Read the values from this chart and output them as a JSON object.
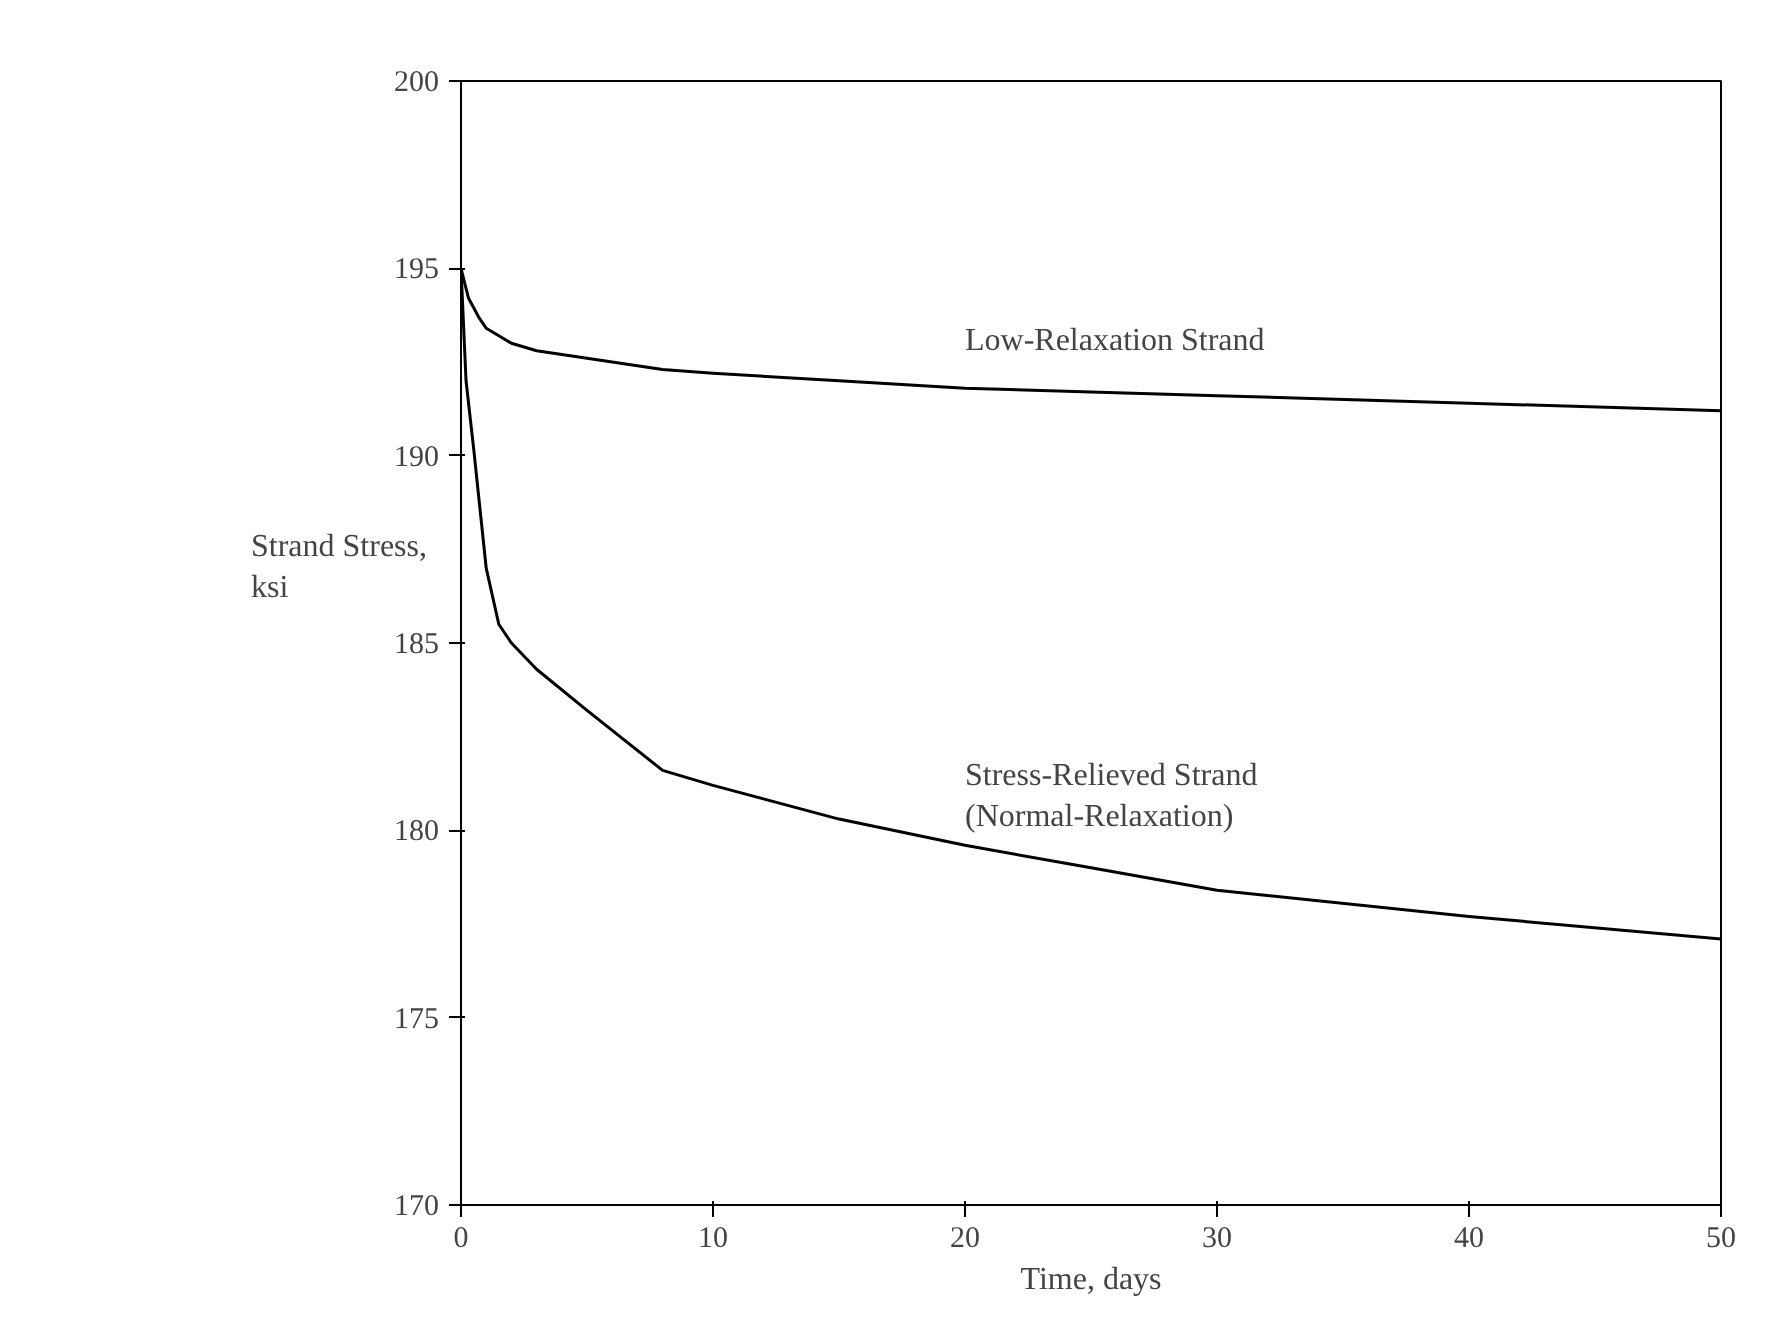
{
  "chart_data": {
    "type": "line",
    "xlabel": "Time, days",
    "ylabel": "Strand Stress,\nksi",
    "xlim": [
      0,
      50
    ],
    "ylim": [
      170,
      200
    ],
    "xticks": [
      0,
      10,
      20,
      30,
      40,
      50
    ],
    "yticks": [
      170,
      175,
      180,
      185,
      190,
      195,
      200
    ],
    "grid": false,
    "marker": "none",
    "line_style": "solid",
    "series": [
      {
        "name": "Low-Relaxation Strand",
        "color": "#000000",
        "x": [
          0,
          0.3,
          0.7,
          1,
          1.5,
          2,
          3,
          5,
          8,
          10,
          15,
          20,
          25,
          30,
          40,
          50
        ],
        "values": [
          195,
          194.2,
          193.7,
          193.4,
          193.2,
          193.0,
          192.8,
          192.6,
          192.3,
          192.2,
          192.0,
          191.8,
          191.7,
          191.6,
          191.4,
          191.2
        ]
      },
      {
        "name": "Stress-Relieved Strand\n(Normal-Relaxation)",
        "color": "#000000",
        "x": [
          0,
          0.2,
          0.5,
          1,
          1.5,
          2,
          3,
          5,
          8,
          10,
          15,
          20,
          25,
          30,
          40,
          50
        ],
        "values": [
          195,
          192,
          190.2,
          187,
          185.5,
          185.0,
          184.3,
          183.2,
          181.6,
          181.2,
          180.3,
          179.6,
          179.0,
          178.4,
          177.7,
          177.1
        ]
      }
    ]
  }
}
